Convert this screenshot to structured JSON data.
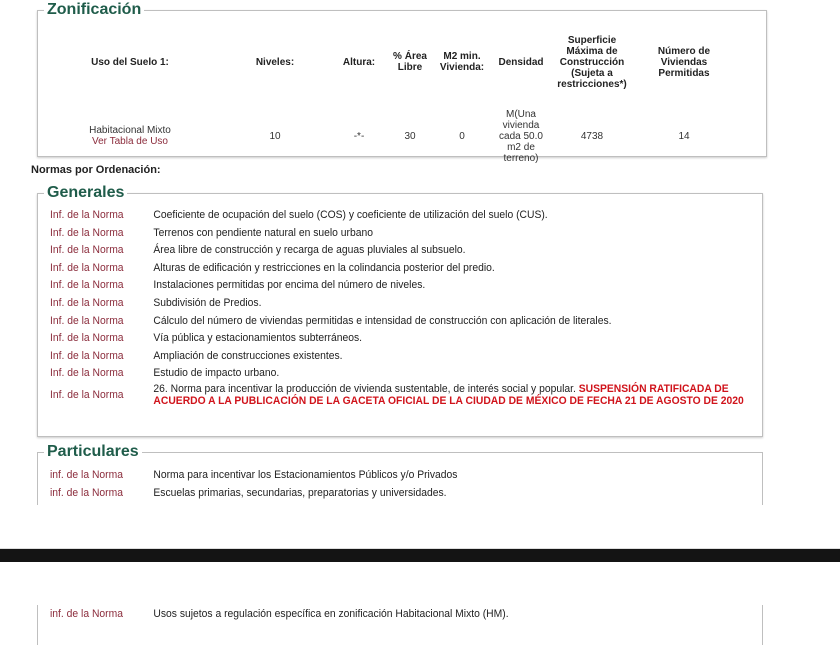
{
  "zonificacion": {
    "title": "Zonificación",
    "headers": [
      "Uso del Suelo 1:",
      "Niveles:",
      "Altura:",
      "% Área Libre",
      "M2 min. Vivienda:",
      "Densidad",
      "Superficie Máxima de Construcción (Sujeta a restricciones*)",
      "Número de Viviendas Permitidas"
    ],
    "row": {
      "uso": "Habitacional Mixto",
      "uso_link": "Ver Tabla de Uso",
      "niveles": "10",
      "altura": "-*-",
      "area_libre": "30",
      "m2_min": "0",
      "densidad": "M(Una vivienda cada 50.0 m2 de terreno)",
      "superficie": "4738",
      "viviendas": "14"
    }
  },
  "normas_title": "Normas por Ordenación:",
  "generales": {
    "title": "Generales",
    "items": [
      {
        "link": "Inf. de la Norma",
        "text": "Coeficiente de ocupación del suelo (COS) y coeficiente de utilización del suelo (CUS)."
      },
      {
        "link": "Inf. de la Norma",
        "text": "Terrenos con pendiente natural en suelo urbano"
      },
      {
        "link": "Inf. de la Norma",
        "text": "Área libre de construcción y recarga de aguas pluviales al subsuelo."
      },
      {
        "link": "Inf. de la Norma",
        "text": "Alturas de edificación y restricciones en la colindancia posterior del predio."
      },
      {
        "link": "Inf. de la Norma",
        "text": "Instalaciones permitidas por encima del número de niveles."
      },
      {
        "link": "Inf. de la Norma",
        "text": "Subdivisión de Predios."
      },
      {
        "link": "Inf. de la Norma",
        "text": "Cálculo del número de viviendas permitidas e intensidad de construcción con aplicación de literales."
      },
      {
        "link": "Inf. de la Norma",
        "text": "Vía pública y estacionamientos subterráneos."
      },
      {
        "link": "Inf. de la Norma",
        "text": "Ampliación de construcciones existentes."
      },
      {
        "link": "Inf. de la Norma",
        "text": "Estudio de impacto urbano."
      }
    ],
    "last": {
      "link": "Inf. de la Norma",
      "text": "26. Norma para incentivar la producción de vivienda sustentable, de interés social y popular. ",
      "warning": "SUSPENSIÓN RATIFICADA DE ACUERDO A LA PUBLICACIÓN DE LA GACETA OFICIAL DE LA CIUDAD DE MÉXICO DE FECHA 21 DE AGOSTO DE 2020"
    }
  },
  "particulares": {
    "title": "Particulares",
    "items": [
      {
        "link": "inf. de la Norma",
        "text": "Norma para incentivar los Estacionamientos Públicos y/o Privados"
      },
      {
        "link": "inf. de la Norma",
        "text": "Escuelas primarias, secundarias, preparatorias y universidades."
      }
    ],
    "continued": {
      "link": "inf. de la Norma",
      "text": "Usos sujetos a regulación específica en zonificación Habitacional Mixto (HM)."
    }
  }
}
